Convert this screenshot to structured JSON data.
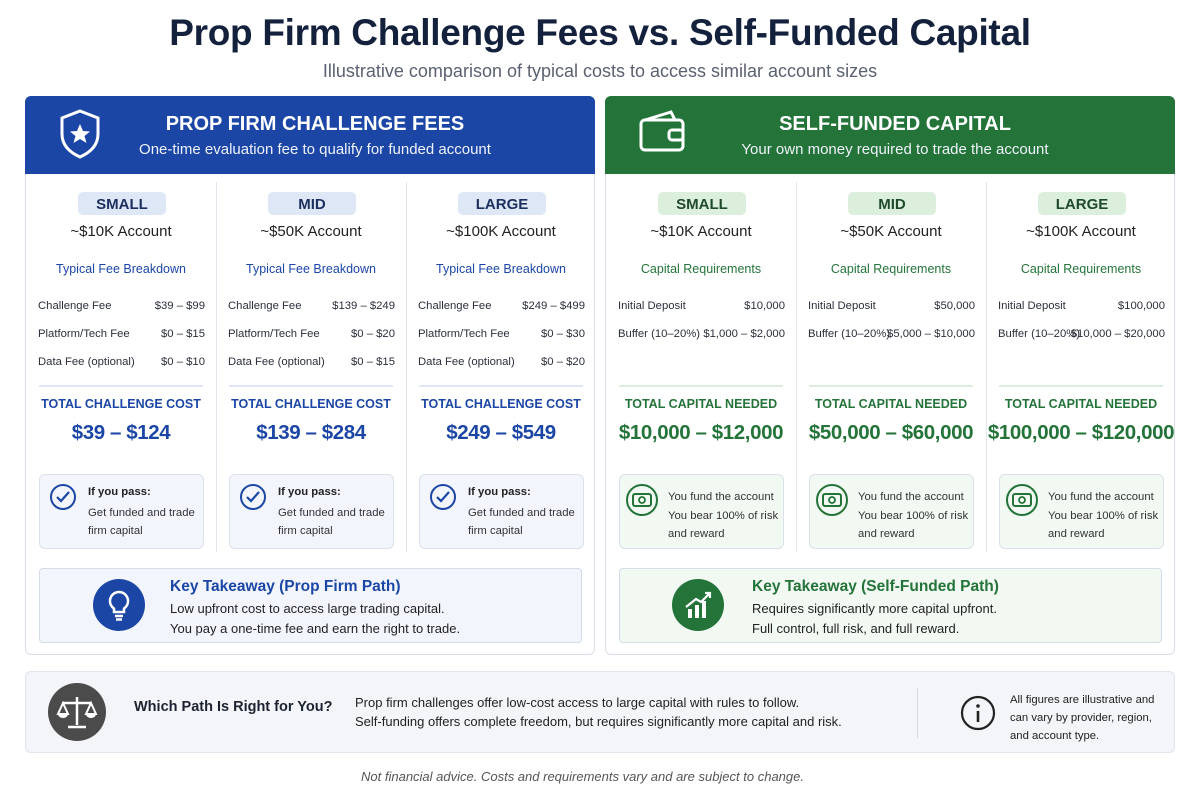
{
  "header": {
    "title": "Prop Firm Challenge Fees vs. Self-Funded Capital",
    "subtitle": "Illustrative comparison of typical costs to access similar account sizes"
  },
  "panels": [
    {
      "title": "PROP FIRM CHALLENGE FEES",
      "subtitle": "One-time evaluation fee to qualify for funded account",
      "color": "#1b46a6",
      "tint": "#dde7f6",
      "light": "#f2f6fc",
      "tiers": [
        {
          "tag": "SMALL",
          "account": "~$10K Account",
          "section": "Typical Fee Breakdown",
          "rows": [
            [
              "Challenge Fee",
              "$39 – $99"
            ],
            [
              "Platform/Tech Fee",
              "$0 – $15"
            ],
            [
              "Data Fee (optional)",
              "$0 – $10"
            ]
          ],
          "total_label": "TOTAL CHALLENGE COST",
          "total": "$39 – $124",
          "note_title": "If you pass:",
          "note": [
            "Get funded and trade firm capital"
          ]
        },
        {
          "tag": "MID",
          "account": "~$50K Account",
          "section": "Typical Fee Breakdown",
          "rows": [
            [
              "Challenge Fee",
              "$139 – $249"
            ],
            [
              "Platform/Tech Fee",
              "$0 – $20"
            ],
            [
              "Data Fee (optional)",
              "$0 – $15"
            ]
          ],
          "total_label": "TOTAL CHALLENGE COST",
          "total": "$139 – $284",
          "note_title": "If you pass:",
          "note": [
            "Get funded and trade firm capital"
          ]
        },
        {
          "tag": "LARGE",
          "account": "~$100K Account",
          "section": "Typical Fee Breakdown",
          "rows": [
            [
              "Challenge Fee",
              "$249 – $499"
            ],
            [
              "Platform/Tech Fee",
              "$0 – $30"
            ],
            [
              "Data Fee (optional)",
              "$0 – $20"
            ]
          ],
          "total_label": "TOTAL CHALLENGE COST",
          "total": "$249 – $549",
          "note_title": "If you pass:",
          "note": [
            "Get funded and trade firm capital"
          ]
        }
      ],
      "takeaway": {
        "title": "Key Takeaway (Prop Firm Path)",
        "lines": [
          "Low upfront cost to access large trading capital.",
          "You pay a one-time fee and earn the right to trade."
        ]
      }
    },
    {
      "title": "SELF-FUNDED CAPITAL",
      "subtitle": "Your own money required to trade the account",
      "color": "#24743a",
      "tint": "#dcefdd",
      "light": "#f2f8f2",
      "tiers": [
        {
          "tag": "SMALL",
          "account": "~$10K Account",
          "section": "Capital Requirements",
          "rows": [
            [
              "Initial Deposit",
              "$10,000"
            ],
            [
              "Buffer (10–20%)",
              "$1,000 – $2,000"
            ]
          ],
          "total_label": "TOTAL CAPITAL NEEDED",
          "total": "$10,000 – $12,000",
          "note": [
            "You fund the account",
            "You bear 100% of risk and reward"
          ]
        },
        {
          "tag": "MID",
          "account": "~$50K Account",
          "section": "Capital Requirements",
          "rows": [
            [
              "Initial Deposit",
              "$50,000"
            ],
            [
              "Buffer (10–20%)",
              "$5,000 – $10,000"
            ]
          ],
          "total_label": "TOTAL CAPITAL NEEDED",
          "total": "$50,000 – $60,000",
          "note": [
            "You fund the account",
            "You bear 100% of risk and reward"
          ]
        },
        {
          "tag": "LARGE",
          "account": "~$100K Account",
          "section": "Capital Requirements",
          "rows": [
            [
              "Initial Deposit",
              "$100,000"
            ],
            [
              "Buffer (10–20%)",
              "$10,000 – $20,000"
            ]
          ],
          "total_label": "TOTAL CAPITAL NEEDED",
          "total": "$100,000 – $120,000",
          "note": [
            "You fund the account",
            "You bear 100% of risk and reward"
          ]
        }
      ],
      "takeaway": {
        "title": "Key Takeaway (Self-Funded Path)",
        "lines": [
          "Requires significantly more capital upfront.",
          "Full control, full risk, and full reward."
        ]
      }
    }
  ],
  "footer": {
    "question": "Which Path Is Right for You?",
    "lines": [
      "Prop firm challenges offer low-cost access to large capital with rules to follow.",
      "Self-funding offers complete freedom, but requires significantly more capital and risk."
    ],
    "note": "All figures are illustrative and can vary by provider, region, and account type."
  },
  "disclaimer": "Not financial advice. Costs and requirements vary and are subject to change."
}
